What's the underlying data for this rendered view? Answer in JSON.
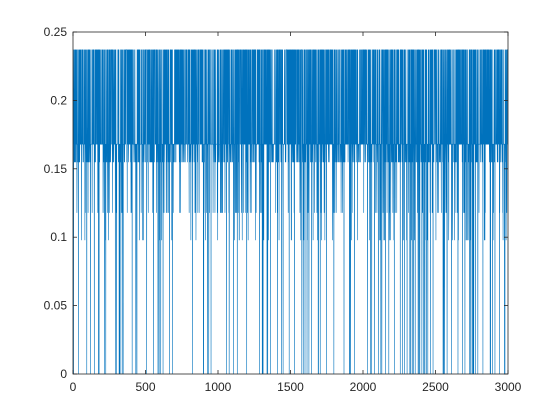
{
  "chart_data": {
    "type": "line",
    "title": "",
    "xlabel": "",
    "ylabel": "",
    "xlim": [
      0,
      3000
    ],
    "ylim": [
      0,
      0.25
    ],
    "xticks": [
      0,
      500,
      1000,
      1500,
      2000,
      2500,
      3000
    ],
    "yticks": [
      0,
      0.05,
      0.1,
      0.15,
      0.2,
      0.25
    ],
    "xtick_labels": [
      "0",
      "500",
      "1000",
      "1500",
      "2000",
      "2500",
      "3000"
    ],
    "ytick_labels": [
      "0",
      "0.05",
      "0.1",
      "0.15",
      "0.2",
      "0.25"
    ],
    "grid": false,
    "box": true,
    "line_color": "#0072bd",
    "series": [
      {
        "name": "",
        "x_start": 1,
        "x_step": 1,
        "n_points": 3000,
        "levels": [
          0.237,
          0.168,
          0.155,
          0.118,
          0.098,
          0
        ],
        "level_weights": [
          0.36,
          0.42,
          0.12,
          0.04,
          0.02,
          0.04
        ]
      }
    ]
  }
}
